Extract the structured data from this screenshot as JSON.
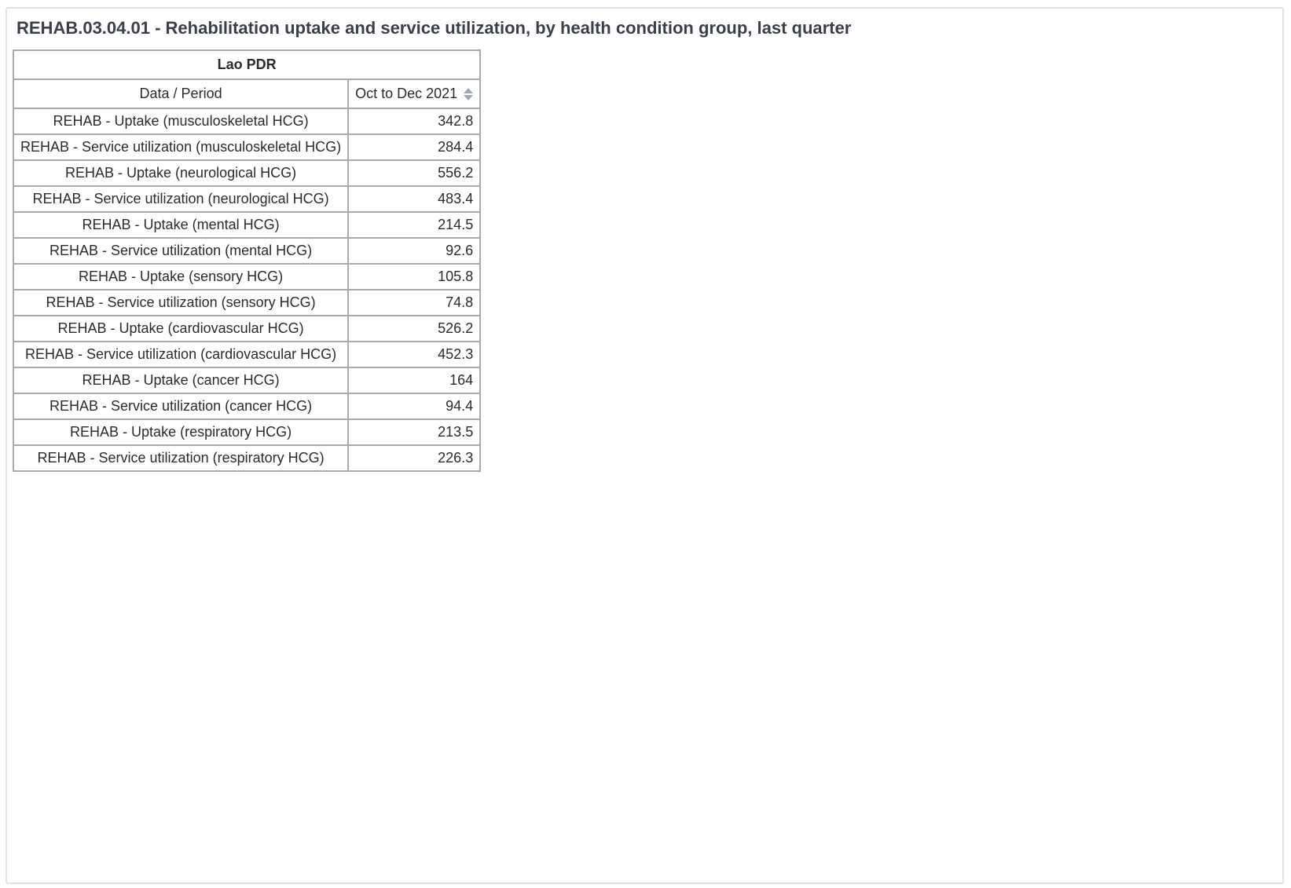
{
  "title": "REHAB.03.04.01 - Rehabilitation uptake and service utilization, by health condition group, last quarter",
  "table": {
    "country": "Lao PDR",
    "row_header": "Data / Period",
    "period": "Oct to Dec 2021",
    "sort_icon": "sort-icon",
    "rows": [
      {
        "label": "REHAB - Uptake (musculoskeletal HCG)",
        "value": "342.8"
      },
      {
        "label": "REHAB - Service utilization (musculoskeletal HCG)",
        "value": "284.4"
      },
      {
        "label": "REHAB - Uptake (neurological HCG)",
        "value": "556.2"
      },
      {
        "label": "REHAB - Service utilization (neurological HCG)",
        "value": "483.4"
      },
      {
        "label": "REHAB - Uptake (mental HCG)",
        "value": "214.5"
      },
      {
        "label": "REHAB - Service utilization (mental HCG)",
        "value": "92.6"
      },
      {
        "label": "REHAB - Uptake (sensory HCG)",
        "value": "105.8"
      },
      {
        "label": "REHAB - Service utilization (sensory HCG)",
        "value": "74.8"
      },
      {
        "label": "REHAB - Uptake (cardiovascular HCG)",
        "value": "526.2"
      },
      {
        "label": "REHAB - Service utilization (cardiovascular HCG)",
        "value": "452.3"
      },
      {
        "label": "REHAB - Uptake (cancer HCG)",
        "value": "164"
      },
      {
        "label": "REHAB - Service utilization (cancer HCG)",
        "value": "94.4"
      },
      {
        "label": "REHAB - Uptake (respiratory HCG)",
        "value": "213.5"
      },
      {
        "label": "REHAB - Service utilization (respiratory HCG)",
        "value": "226.3"
      }
    ]
  }
}
